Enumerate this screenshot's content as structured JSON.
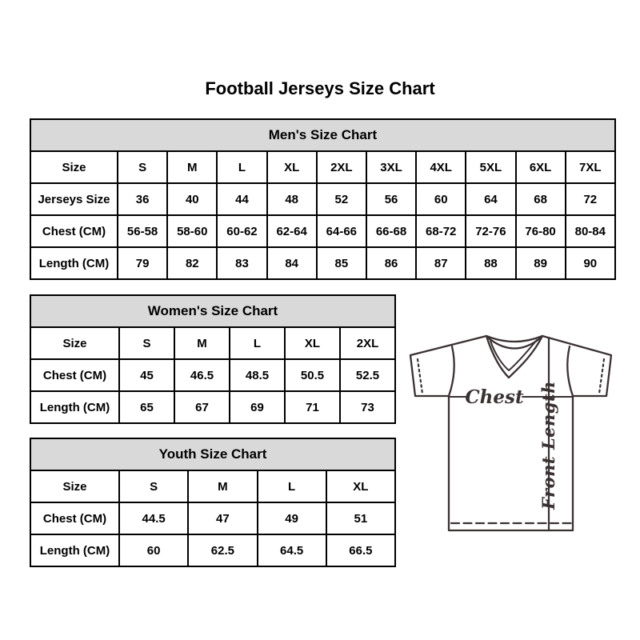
{
  "title": "Football Jerseys Size Chart",
  "colors": {
    "background": "#ffffff",
    "table_border": "#000000",
    "table_header_bg": "#d9d9d9",
    "text": "#000000",
    "diagram_line": "#3a3132"
  },
  "diagram": {
    "chest_label": "Chest",
    "front_length_label": "Front Length"
  },
  "chart_data": [
    {
      "type": "table",
      "title": "Men's Size Chart",
      "rows": [
        {
          "label": "Size",
          "values": [
            "S",
            "M",
            "L",
            "XL",
            "2XL",
            "3XL",
            "4XL",
            "5XL",
            "6XL",
            "7XL"
          ]
        },
        {
          "label": "Jerseys Size",
          "values": [
            "36",
            "40",
            "44",
            "48",
            "52",
            "56",
            "60",
            "64",
            "68",
            "72"
          ]
        },
        {
          "label": "Chest (CM)",
          "values": [
            "56-58",
            "58-60",
            "60-62",
            "62-64",
            "64-66",
            "66-68",
            "68-72",
            "72-76",
            "76-80",
            "80-84"
          ]
        },
        {
          "label": "Length (CM)",
          "values": [
            "79",
            "82",
            "83",
            "84",
            "85",
            "86",
            "87",
            "88",
            "89",
            "90"
          ]
        }
      ]
    },
    {
      "type": "table",
      "title": "Women's Size Chart",
      "rows": [
        {
          "label": "Size",
          "values": [
            "S",
            "M",
            "L",
            "XL",
            "2XL"
          ]
        },
        {
          "label": "Chest (CM)",
          "values": [
            "45",
            "46.5",
            "48.5",
            "50.5",
            "52.5"
          ]
        },
        {
          "label": "Length (CM)",
          "values": [
            "65",
            "67",
            "69",
            "71",
            "73"
          ]
        }
      ]
    },
    {
      "type": "table",
      "title": "Youth Size Chart",
      "rows": [
        {
          "label": "Size",
          "values": [
            "S",
            "M",
            "L",
            "XL"
          ]
        },
        {
          "label": "Chest (CM)",
          "values": [
            "44.5",
            "47",
            "49",
            "51"
          ]
        },
        {
          "label": "Length (CM)",
          "values": [
            "60",
            "62.5",
            "64.5",
            "66.5"
          ]
        }
      ]
    }
  ]
}
